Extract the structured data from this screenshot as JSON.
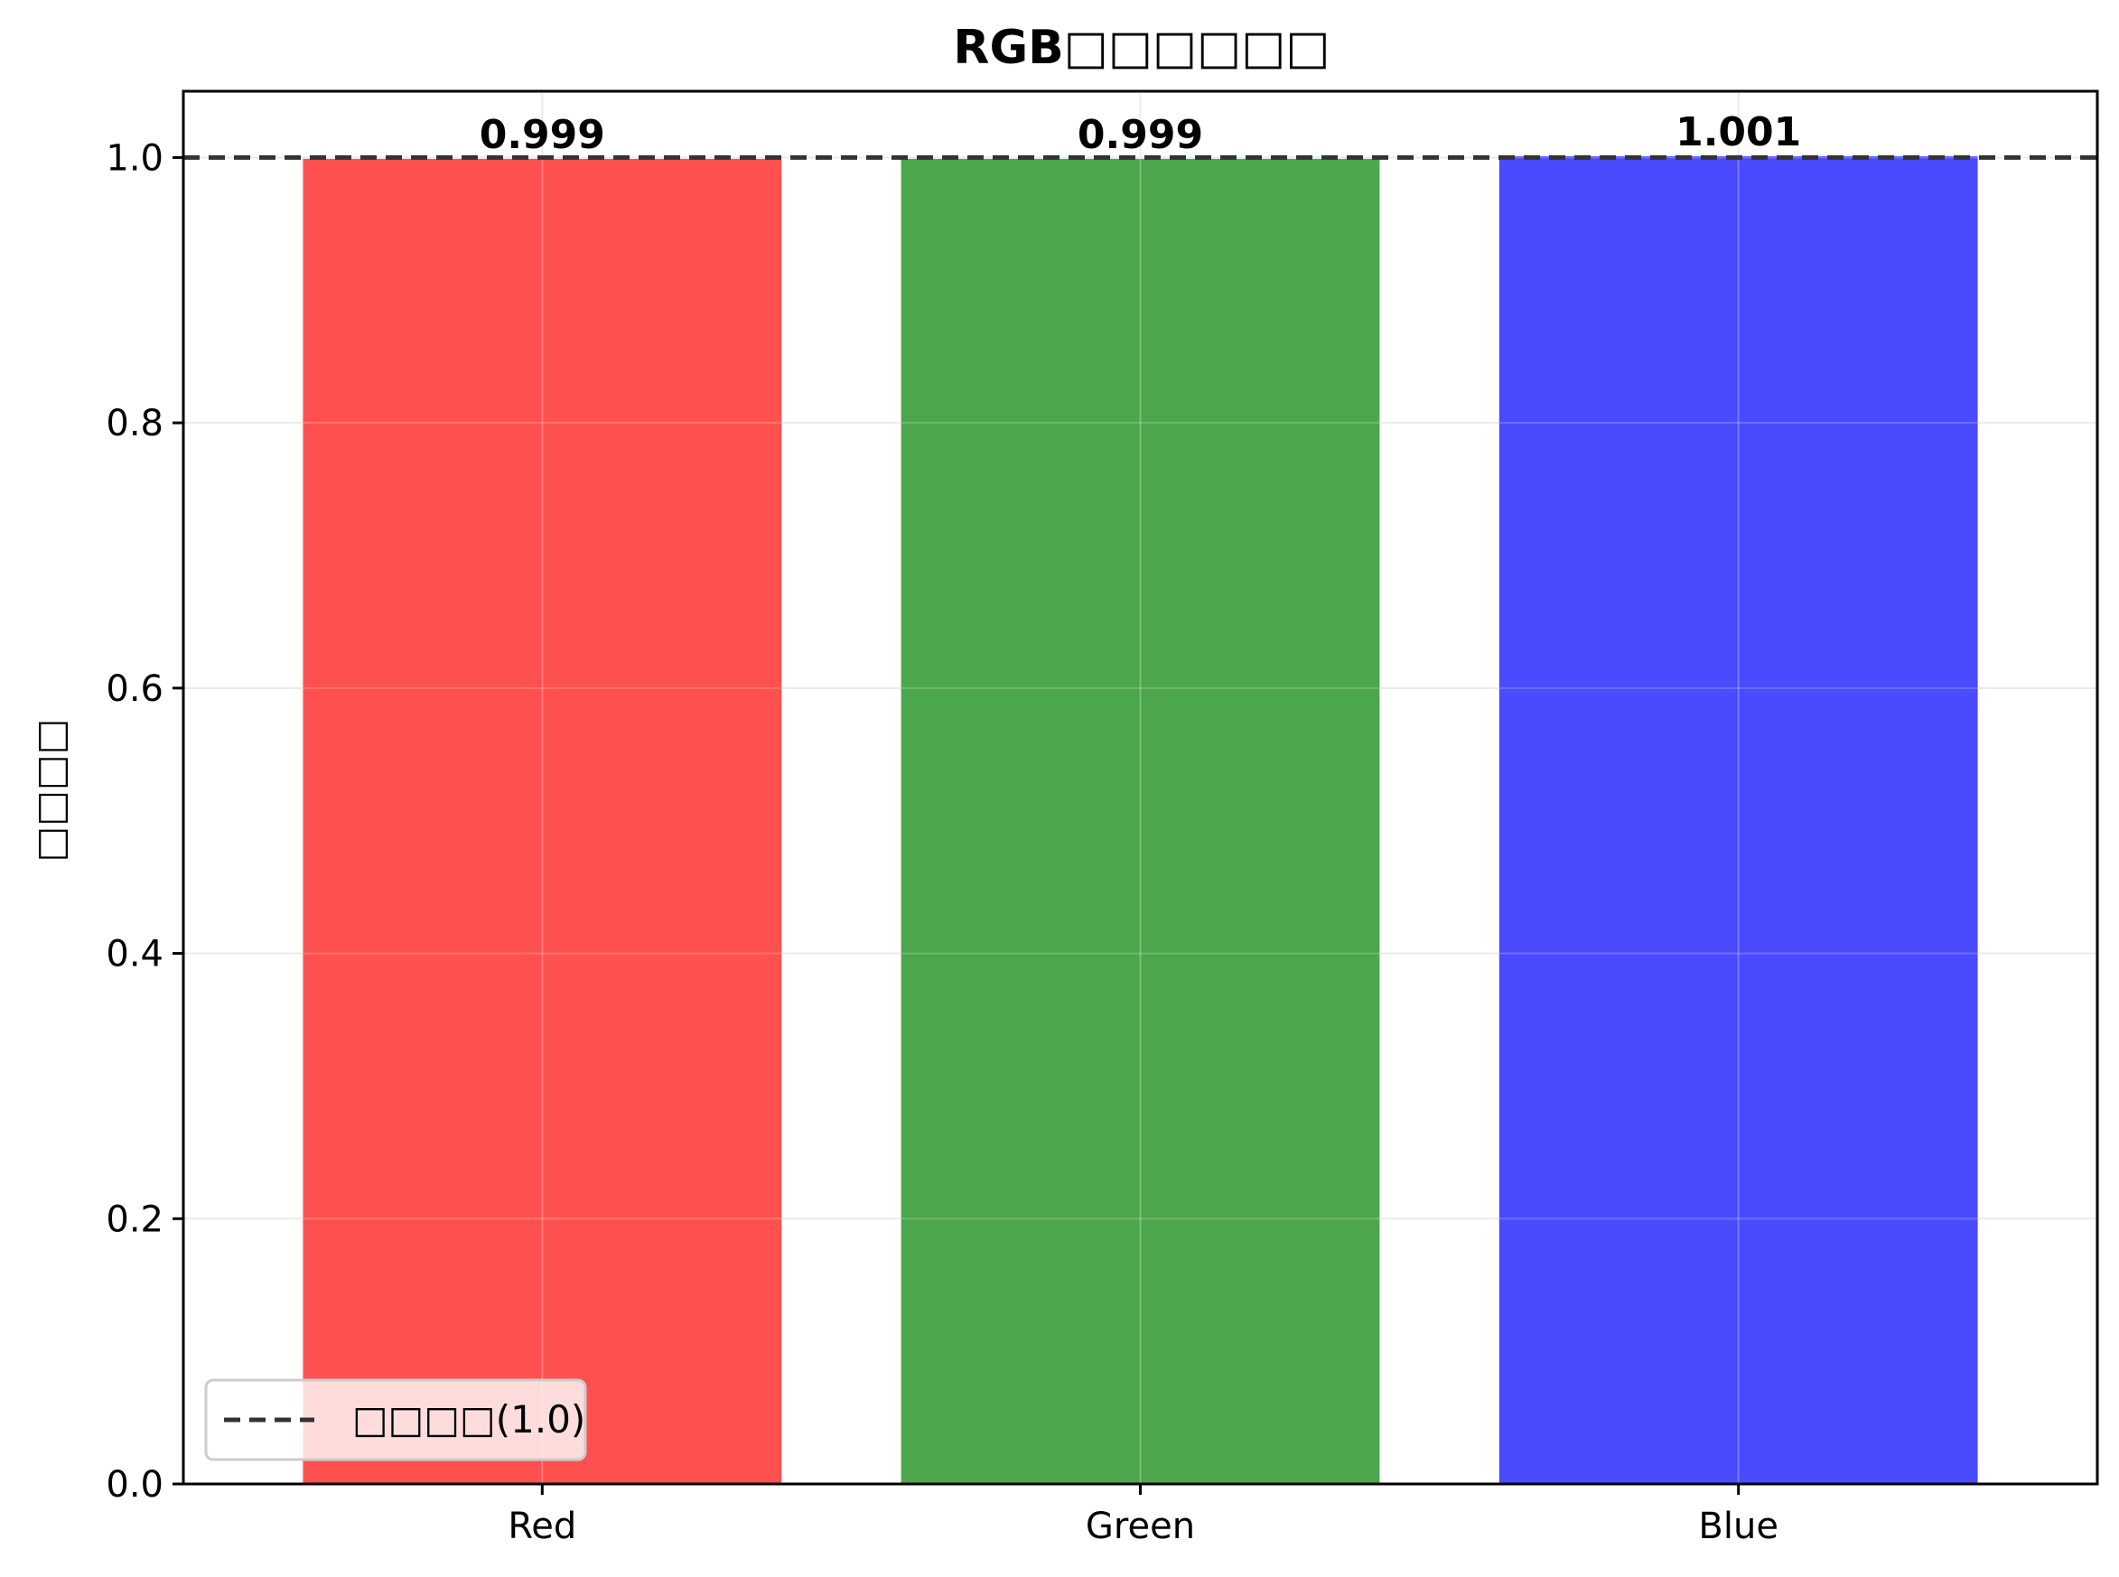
{
  "chart_data": {
    "type": "bar",
    "title": "RGB□□□□□□",
    "xlabel": "",
    "ylabel": "□□□□",
    "categories": [
      "Red",
      "Green",
      "Blue"
    ],
    "values": [
      0.999,
      0.999,
      1.001
    ],
    "value_labels": [
      "0.999",
      "0.999",
      "1.001"
    ],
    "bar_colors": [
      "#ff5050",
      "#4ca64c",
      "#4a4aff"
    ],
    "ylim": [
      0,
      1.05
    ],
    "yticks": [
      0.0,
      0.2,
      0.4,
      0.6,
      0.8,
      1.0
    ],
    "ytick_labels": [
      "0.0",
      "0.2",
      "0.4",
      "0.6",
      "0.8",
      "1.0"
    ],
    "reference_line": {
      "value": 1.0,
      "style": "dashed",
      "color": "#333333",
      "label": "□□□□(1.0)"
    },
    "grid": true,
    "legend": {
      "placement": "lower-left",
      "entries": [
        "□□□□(1.0)"
      ]
    }
  }
}
